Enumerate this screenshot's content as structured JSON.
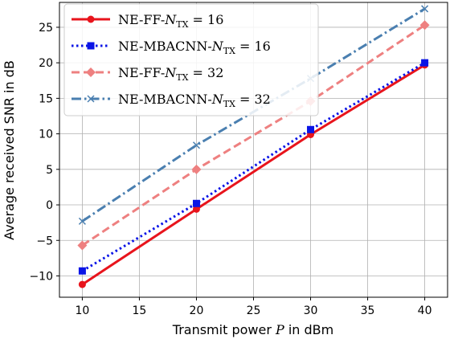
{
  "chart_data": {
    "type": "line",
    "xlabel": "Transmit power P in dBm",
    "ylabel": "Average received SNR in dB",
    "xlim": [
      8,
      42
    ],
    "ylim": [
      -13,
      28.5
    ],
    "xticks": [
      10,
      15,
      20,
      25,
      30,
      35,
      40
    ],
    "yticks": [
      -10,
      -5,
      0,
      5,
      10,
      15,
      20,
      25
    ],
    "grid": true,
    "legend_position": "top-left",
    "x": [
      10,
      20,
      30,
      40
    ],
    "series": [
      {
        "name": "NE-FF-N_TX = 16",
        "values": [
          -11.2,
          -0.6,
          9.9,
          19.7
        ],
        "color": "#e8141c",
        "linestyle": "solid",
        "marker": "circle"
      },
      {
        "name": "NE-MBACNN-N_TX = 16",
        "values": [
          -9.3,
          0.2,
          10.6,
          20.0
        ],
        "color": "#0a14e6",
        "linestyle": "dotted",
        "marker": "square"
      },
      {
        "name": "NE-FF-N_TX = 32",
        "values": [
          -5.7,
          5.0,
          14.6,
          25.3
        ],
        "color": "#ee8080",
        "linestyle": "dashed",
        "marker": "diamond"
      },
      {
        "name": "NE-MBACNN-N_TX = 32",
        "values": [
          -2.3,
          8.4,
          17.8,
          27.6
        ],
        "color": "#4a7fb0",
        "linestyle": "dashdot",
        "marker": "x"
      }
    ]
  }
}
